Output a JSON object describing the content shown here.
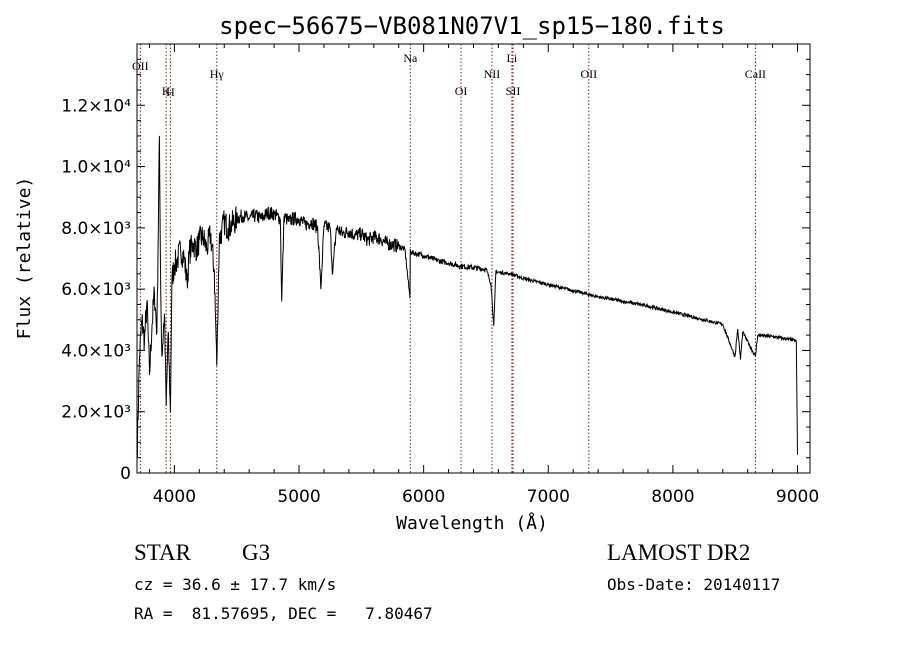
{
  "chart_data": {
    "type": "line",
    "title": "spec−56675−VB081N07V1_sp15−180.fits",
    "xlabel": "Wavelength (Å)",
    "ylabel": "Flux (relative)",
    "xlim": [
      3700,
      9100
    ],
    "ylim": [
      0,
      14000
    ],
    "x_ticks": [
      {
        "value": 4000,
        "label": "4000"
      },
      {
        "value": 5000,
        "label": "5000"
      },
      {
        "value": 6000,
        "label": "6000"
      },
      {
        "value": 7000,
        "label": "7000"
      },
      {
        "value": 8000,
        "label": "8000"
      },
      {
        "value": 9000,
        "label": "9000"
      }
    ],
    "y_ticks": [
      {
        "value": 0,
        "label": "0"
      },
      {
        "value": 2000,
        "label": "2.0×10³"
      },
      {
        "value": 4000,
        "label": "4.0×10³"
      },
      {
        "value": 6000,
        "label": "6.0×10³"
      },
      {
        "value": 8000,
        "label": "8.0×10³"
      },
      {
        "value": 10000,
        "label": "1.0×10⁴"
      },
      {
        "value": 12000,
        "label": "1.2×10⁴"
      }
    ],
    "series": [
      {
        "x": [
          3700,
          3720,
          3740,
          3760,
          3780,
          3800,
          3820,
          3840,
          3860,
          3880,
          3890,
          3900,
          3920,
          3934,
          3950,
          3968,
          3980,
          4000,
          4020,
          4050,
          4080,
          4102,
          4120,
          4150,
          4180,
          4200,
          4230,
          4260,
          4290,
          4320,
          4340,
          4360,
          4380,
          4400,
          4430,
          4460,
          4500,
          4550,
          4600,
          4650,
          4700,
          4750,
          4800,
          4850,
          4861,
          4880,
          4920,
          4950,
          5000,
          5050,
          5100,
          5150,
          5175,
          5200,
          5250,
          5270,
          5300,
          5350,
          5400,
          5450,
          5500,
          5550,
          5600,
          5650,
          5700,
          5750,
          5800,
          5850,
          5890,
          5893,
          5900,
          5950,
          6000,
          6100,
          6200,
          6300,
          6400,
          6500,
          6540,
          6563,
          6580,
          6600,
          6700,
          6800,
          6900,
          7000,
          7200,
          7400,
          7600,
          7800,
          8000,
          8200,
          8400,
          8498,
          8520,
          8542,
          8560,
          8662,
          8680,
          8800,
          8950,
          8990,
          9000
        ],
        "y": [
          500,
          3800,
          5000,
          4300,
          5600,
          3200,
          4800,
          5900,
          4600,
          11000,
          6000,
          3800,
          5200,
          2200,
          4600,
          2000,
          6300,
          6800,
          6900,
          7300,
          7000,
          6200,
          7200,
          7500,
          7300,
          7600,
          7700,
          7300,
          7800,
          6600,
          3500,
          7600,
          7900,
          8200,
          8000,
          8100,
          8300,
          8400,
          8300,
          8400,
          8300,
          8500,
          8450,
          8300,
          5600,
          8400,
          8200,
          8300,
          8300,
          8100,
          8200,
          8000,
          6000,
          8050,
          8000,
          6500,
          8000,
          7800,
          7900,
          7750,
          7800,
          7600,
          7700,
          7650,
          7500,
          7450,
          7400,
          7300,
          5700,
          7300,
          7200,
          7150,
          7100,
          6950,
          6850,
          6750,
          6700,
          6650,
          6200,
          4800,
          6600,
          6550,
          6500,
          6350,
          6250,
          6150,
          5950,
          5750,
          5600,
          5450,
          5250,
          5050,
          4850,
          3800,
          4700,
          3700,
          4600,
          3800,
          4500,
          4450,
          4350,
          4300,
          600
        ]
      }
    ],
    "line_markers": [
      {
        "label": "OII",
        "x": 3727
      },
      {
        "label": "K",
        "x": 3934
      },
      {
        "label": "H",
        "x": 3968
      },
      {
        "label": "Hγ",
        "x": 4340
      },
      {
        "label": "Na",
        "x": 5893
      },
      {
        "label": "OI",
        "x": 6300
      },
      {
        "label": "NII",
        "x": 6548
      },
      {
        "label": "Li",
        "x": 6708
      },
      {
        "label": "SII",
        "x": 6717
      },
      {
        "label": "OII",
        "x": 7325
      },
      {
        "label": "CaII",
        "x": 8662
      }
    ],
    "marker_color": "#8b1a1a",
    "grid": false,
    "legend": "none"
  },
  "info": {
    "object_class": "STAR",
    "subclass": "G3",
    "survey": "LAMOST DR2",
    "cz": "cz = 36.6 ± 17.7 km/s",
    "obs_date": "Obs-Date: 20140117",
    "coords": "RA =  81.57695, DEC =   7.80467"
  }
}
